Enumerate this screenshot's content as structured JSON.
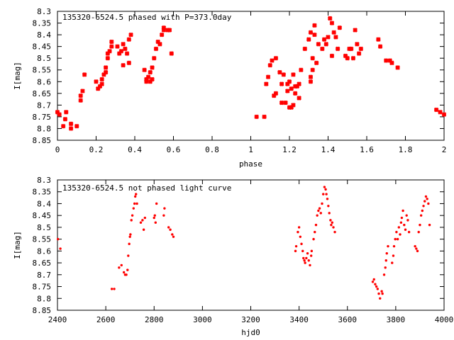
{
  "chart_data": [
    {
      "type": "scatter",
      "title": "135320-6524.5 phased with P=373.0day",
      "xlabel": "phase",
      "ylabel": "I[mag]",
      "xlim": [
        0,
        2
      ],
      "ylim": [
        8.85,
        8.3
      ],
      "y_inverted": true,
      "grid": false,
      "marker": "cross",
      "color": "#ff0000",
      "x_ticks": [
        "0",
        "0.2",
        "0.4",
        "0.6",
        "0.8",
        "1",
        "1.2",
        "1.4",
        "1.6",
        "1.8",
        "2"
      ],
      "y_ticks": [
        "8.3",
        "8.35",
        "8.4",
        "8.45",
        "8.5",
        "8.55",
        "8.6",
        "8.65",
        "8.7",
        "8.75",
        "8.8",
        "8.85"
      ],
      "x_tick_values": [
        0,
        0.2,
        0.4,
        0.6,
        0.8,
        1.0,
        1.2,
        1.4,
        1.6,
        1.8,
        2.0
      ],
      "y_tick_values": [
        8.3,
        8.35,
        8.4,
        8.45,
        8.5,
        8.55,
        8.6,
        8.65,
        8.7,
        8.75,
        8.8,
        8.85
      ],
      "points": [
        [
          0.0,
          8.73
        ],
        [
          0.01,
          8.74
        ],
        [
          0.03,
          8.79
        ],
        [
          0.04,
          8.76
        ],
        [
          0.045,
          8.73
        ],
        [
          0.07,
          8.8
        ],
        [
          0.07,
          8.78
        ],
        [
          0.1,
          8.79
        ],
        [
          0.12,
          8.68
        ],
        [
          0.12,
          8.66
        ],
        [
          0.13,
          8.64
        ],
        [
          0.14,
          8.57
        ],
        [
          0.2,
          8.6
        ],
        [
          0.21,
          8.63
        ],
        [
          0.22,
          8.62
        ],
        [
          0.23,
          8.61
        ],
        [
          0.23,
          8.59
        ],
        [
          0.24,
          8.57
        ],
        [
          0.25,
          8.56
        ],
        [
          0.25,
          8.54
        ],
        [
          0.26,
          8.5
        ],
        [
          0.26,
          8.48
        ],
        [
          0.27,
          8.47
        ],
        [
          0.28,
          8.45
        ],
        [
          0.28,
          8.43
        ],
        [
          0.31,
          8.45
        ],
        [
          0.32,
          8.48
        ],
        [
          0.33,
          8.47
        ],
        [
          0.34,
          8.53
        ],
        [
          0.34,
          8.44
        ],
        [
          0.35,
          8.46
        ],
        [
          0.36,
          8.48
        ],
        [
          0.37,
          8.52
        ],
        [
          0.37,
          8.42
        ],
        [
          0.38,
          8.4
        ],
        [
          0.45,
          8.55
        ],
        [
          0.46,
          8.59
        ],
        [
          0.46,
          8.6
        ],
        [
          0.47,
          8.58
        ],
        [
          0.48,
          8.56
        ],
        [
          0.48,
          8.6
        ],
        [
          0.49,
          8.54
        ],
        [
          0.49,
          8.59
        ],
        [
          0.5,
          8.5
        ],
        [
          0.51,
          8.46
        ],
        [
          0.52,
          8.43
        ],
        [
          0.53,
          8.44
        ],
        [
          0.54,
          8.4
        ],
        [
          0.55,
          8.38
        ],
        [
          0.55,
          8.37
        ],
        [
          0.57,
          8.38
        ],
        [
          0.58,
          8.38
        ],
        [
          0.59,
          8.48
        ],
        [
          1.03,
          8.75
        ],
        [
          1.07,
          8.75
        ],
        [
          1.08,
          8.61
        ],
        [
          1.09,
          8.58
        ],
        [
          1.1,
          8.53
        ],
        [
          1.11,
          8.51
        ],
        [
          1.12,
          8.66
        ],
        [
          1.13,
          8.65
        ],
        [
          1.13,
          8.5
        ],
        [
          1.15,
          8.56
        ],
        [
          1.16,
          8.61
        ],
        [
          1.16,
          8.69
        ],
        [
          1.17,
          8.57
        ],
        [
          1.18,
          8.69
        ],
        [
          1.19,
          8.64
        ],
        [
          1.19,
          8.61
        ],
        [
          1.2,
          8.6
        ],
        [
          1.2,
          8.71
        ],
        [
          1.21,
          8.63
        ],
        [
          1.21,
          8.71
        ],
        [
          1.22,
          8.57
        ],
        [
          1.22,
          8.7
        ],
        [
          1.23,
          8.65
        ],
        [
          1.23,
          8.62
        ],
        [
          1.24,
          8.62
        ],
        [
          1.25,
          8.67
        ],
        [
          1.25,
          8.61
        ],
        [
          1.26,
          8.55
        ],
        [
          1.28,
          8.46
        ],
        [
          1.3,
          8.42
        ],
        [
          1.31,
          8.39
        ],
        [
          1.31,
          8.58
        ],
        [
          1.31,
          8.6
        ],
        [
          1.32,
          8.5
        ],
        [
          1.32,
          8.55
        ],
        [
          1.33,
          8.4
        ],
        [
          1.33,
          8.36
        ],
        [
          1.34,
          8.52
        ],
        [
          1.35,
          8.44
        ],
        [
          1.37,
          8.46
        ],
        [
          1.38,
          8.42
        ],
        [
          1.39,
          8.44
        ],
        [
          1.4,
          8.41
        ],
        [
          1.41,
          8.33
        ],
        [
          1.42,
          8.49
        ],
        [
          1.42,
          8.35
        ],
        [
          1.43,
          8.39
        ],
        [
          1.44,
          8.41
        ],
        [
          1.45,
          8.46
        ],
        [
          1.46,
          8.37
        ],
        [
          1.49,
          8.49
        ],
        [
          1.5,
          8.5
        ],
        [
          1.51,
          8.46
        ],
        [
          1.52,
          8.46
        ],
        [
          1.53,
          8.5
        ],
        [
          1.54,
          8.38
        ],
        [
          1.55,
          8.44
        ],
        [
          1.56,
          8.48
        ],
        [
          1.57,
          8.46
        ],
        [
          1.66,
          8.42
        ],
        [
          1.67,
          8.45
        ],
        [
          1.7,
          8.51
        ],
        [
          1.72,
          8.51
        ],
        [
          1.73,
          8.52
        ],
        [
          1.76,
          8.54
        ],
        [
          1.96,
          8.72
        ],
        [
          1.98,
          8.73
        ],
        [
          2.0,
          8.74
        ]
      ]
    },
    {
      "type": "scatter",
      "title": "135320-6524.5 not phased light curve",
      "xlabel": "hjd0",
      "ylabel": "I[mag]",
      "xlim": [
        2400,
        4000
      ],
      "ylim": [
        8.85,
        8.3
      ],
      "y_inverted": true,
      "grid": false,
      "marker": "dot",
      "color": "#ff0000",
      "x_ticks": [
        "2400",
        "2600",
        "2800",
        "3000",
        "3200",
        "3400",
        "3600",
        "3800",
        "4000"
      ],
      "y_ticks": [
        "8.3",
        "8.35",
        "8.4",
        "8.45",
        "8.5",
        "8.55",
        "8.6",
        "8.65",
        "8.7",
        "8.75",
        "8.8",
        "8.85"
      ],
      "x_tick_values": [
        2400,
        2600,
        2800,
        3000,
        3200,
        3400,
        3600,
        3800,
        4000
      ],
      "y_tick_values": [
        8.3,
        8.35,
        8.4,
        8.45,
        8.5,
        8.55,
        8.6,
        8.65,
        8.7,
        8.75,
        8.8,
        8.85
      ],
      "points": [
        [
          2402,
          8.55
        ],
        [
          2412,
          8.59
        ],
        [
          2625,
          8.76
        ],
        [
          2635,
          8.76
        ],
        [
          2655,
          8.67
        ],
        [
          2665,
          8.66
        ],
        [
          2675,
          8.69
        ],
        [
          2680,
          8.7
        ],
        [
          2685,
          8.7
        ],
        [
          2690,
          8.68
        ],
        [
          2693,
          8.62
        ],
        [
          2697,
          8.57
        ],
        [
          2700,
          8.54
        ],
        [
          2702,
          8.53
        ],
        [
          2706,
          8.47
        ],
        [
          2710,
          8.45
        ],
        [
          2715,
          8.42
        ],
        [
          2719,
          8.4
        ],
        [
          2722,
          8.37
        ],
        [
          2725,
          8.36
        ],
        [
          2729,
          8.4
        ],
        [
          2745,
          8.48
        ],
        [
          2752,
          8.47
        ],
        [
          2757,
          8.51
        ],
        [
          2762,
          8.46
        ],
        [
          2800,
          8.46
        ],
        [
          2803,
          8.45
        ],
        [
          2806,
          8.48
        ],
        [
          2810,
          8.4
        ],
        [
          2840,
          8.45
        ],
        [
          2843,
          8.42
        ],
        [
          2860,
          8.5
        ],
        [
          2867,
          8.51
        ],
        [
          2875,
          8.53
        ],
        [
          2880,
          8.54
        ],
        [
          3385,
          8.6
        ],
        [
          3388,
          8.58
        ],
        [
          3395,
          8.52
        ],
        [
          3400,
          8.5
        ],
        [
          3405,
          8.54
        ],
        [
          3410,
          8.57
        ],
        [
          3415,
          8.6
        ],
        [
          3418,
          8.63
        ],
        [
          3422,
          8.64
        ],
        [
          3425,
          8.65
        ],
        [
          3430,
          8.63
        ],
        [
          3435,
          8.61
        ],
        [
          3440,
          8.64
        ],
        [
          3445,
          8.66
        ],
        [
          3450,
          8.62
        ],
        [
          3452,
          8.6
        ],
        [
          3460,
          8.55
        ],
        [
          3465,
          8.52
        ],
        [
          3470,
          8.49
        ],
        [
          3475,
          8.45
        ],
        [
          3480,
          8.43
        ],
        [
          3485,
          8.42
        ],
        [
          3490,
          8.44
        ],
        [
          3495,
          8.4
        ],
        [
          3500,
          8.36
        ],
        [
          3505,
          8.33
        ],
        [
          3510,
          8.34
        ],
        [
          3513,
          8.36
        ],
        [
          3517,
          8.38
        ],
        [
          3521,
          8.41
        ],
        [
          3525,
          8.44
        ],
        [
          3530,
          8.47
        ],
        [
          3533,
          8.49
        ],
        [
          3537,
          8.48
        ],
        [
          3542,
          8.5
        ],
        [
          3548,
          8.52
        ],
        [
          3705,
          8.73
        ],
        [
          3710,
          8.72
        ],
        [
          3715,
          8.74
        ],
        [
          3720,
          8.75
        ],
        [
          3725,
          8.76
        ],
        [
          3730,
          8.78
        ],
        [
          3735,
          8.8
        ],
        [
          3742,
          8.77
        ],
        [
          3745,
          8.78
        ],
        [
          3752,
          8.7
        ],
        [
          3757,
          8.67
        ],
        [
          3760,
          8.64
        ],
        [
          3763,
          8.61
        ],
        [
          3768,
          8.58
        ],
        [
          3785,
          8.65
        ],
        [
          3790,
          8.62
        ],
        [
          3793,
          8.58
        ],
        [
          3798,
          8.55
        ],
        [
          3803,
          8.52
        ],
        [
          3808,
          8.55
        ],
        [
          3813,
          8.5
        ],
        [
          3818,
          8.53
        ],
        [
          3822,
          8.48
        ],
        [
          3825,
          8.46
        ],
        [
          3830,
          8.43
        ],
        [
          3835,
          8.49
        ],
        [
          3840,
          8.51
        ],
        [
          3845,
          8.45
        ],
        [
          3850,
          8.47
        ],
        [
          3855,
          8.52
        ],
        [
          3880,
          8.58
        ],
        [
          3885,
          8.59
        ],
        [
          3890,
          8.6
        ],
        [
          3895,
          8.52
        ],
        [
          3900,
          8.49
        ],
        [
          3905,
          8.45
        ],
        [
          3910,
          8.43
        ],
        [
          3915,
          8.41
        ],
        [
          3920,
          8.39
        ],
        [
          3925,
          8.37
        ],
        [
          3930,
          8.38
        ],
        [
          3935,
          8.4
        ],
        [
          3940,
          8.49
        ]
      ]
    }
  ]
}
